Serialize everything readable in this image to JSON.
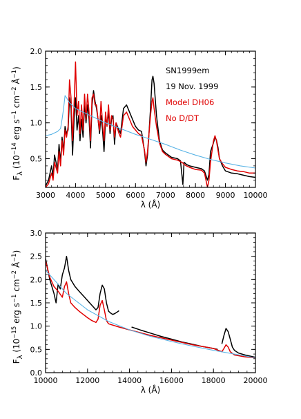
{
  "chart_data": [
    {
      "type": "line",
      "panel": "top",
      "xlim": [
        3000,
        10000
      ],
      "ylim": [
        0.1,
        2.0
      ],
      "xticks": [
        3000,
        4000,
        5000,
        6000,
        7000,
        8000,
        9000,
        10000
      ],
      "xtick_labels": [
        "3000",
        "4000",
        "5000",
        "6000",
        "7000",
        "8000",
        "9000",
        "10000"
      ],
      "yticks": [
        0.5,
        1.0,
        1.5,
        2.0
      ],
      "ytick_labels": [
        "0.5",
        "1.0",
        "1.5",
        "2.0"
      ],
      "xlabel": "λ (Å)",
      "ylabel": "F_λ (10^-14 erg s^-1 cm^-2 Å^-1)",
      "ylabel_parts": {
        "f": "F",
        "lambda_sub": "λ",
        "open": "(10",
        "exp_scale": "−14",
        "erg": "erg s",
        "exp_s": "−1",
        "cm": "cm",
        "exp_cm": "−2",
        "ang": "Å",
        "exp_ang": "−1",
        "close": ")"
      },
      "legend": {
        "placement": "top-right",
        "lines": [
          {
            "text": "SN1999em",
            "color": "#000000"
          },
          {
            "text": "19 Nov. 1999",
            "color": "#000000"
          },
          {
            "text": "Model DH06",
            "color": "#e00000"
          },
          {
            "text": "No D/DT",
            "color": "#e00000"
          }
        ]
      },
      "series": [
        {
          "color": "#000000",
          "x": [
            3000,
            3100,
            3200,
            3250,
            3300,
            3400,
            3450,
            3500,
            3550,
            3600,
            3650,
            3700,
            3750,
            3800,
            3850,
            3900,
            3950,
            4000,
            4050,
            4100,
            4150,
            4200,
            4250,
            4300,
            4350,
            4400,
            4450,
            4500,
            4550,
            4600,
            4650,
            4700,
            4750,
            4800,
            4850,
            4900,
            4950,
            5000,
            5050,
            5100,
            5150,
            5200,
            5250,
            5300,
            5350,
            5400,
            5450,
            5500,
            5600,
            5700,
            5800,
            5900,
            6000,
            6100,
            6200,
            6250,
            6300,
            6350,
            6400,
            6450,
            6500,
            6550,
            6580,
            6620,
            6700,
            6800,
            6900,
            7000,
            7200,
            7400,
            7500,
            7580,
            7620,
            7700,
            7800,
            8000,
            8200,
            8300,
            8400,
            8450,
            8500,
            8600,
            8650,
            8700,
            8750,
            8800,
            8900,
            9000,
            9200,
            9400,
            9600,
            9800,
            10000
          ],
          "y": [
            0.12,
            0.2,
            0.4,
            0.25,
            0.55,
            0.35,
            0.7,
            0.45,
            0.8,
            0.6,
            0.95,
            0.85,
            0.9,
            1.35,
            1.2,
            0.55,
            1.05,
            1.35,
            0.9,
            1.1,
            0.75,
            1.05,
            0.8,
            1.25,
            1.0,
            1.25,
            1.05,
            0.65,
            1.25,
            1.45,
            1.3,
            1.2,
            1.05,
            0.85,
            1.1,
            0.9,
            0.6,
            1.05,
            1.0,
            1.15,
            0.85,
            1.05,
            1.1,
            0.7,
            1.0,
            0.95,
            0.9,
            0.85,
            1.2,
            1.25,
            1.15,
            1.05,
            0.95,
            0.9,
            0.88,
            0.75,
            0.6,
            0.4,
            0.55,
            0.85,
            1.2,
            1.6,
            1.65,
            1.55,
            1.1,
            0.75,
            0.62,
            0.58,
            0.52,
            0.5,
            0.47,
            0.14,
            0.45,
            0.42,
            0.4,
            0.38,
            0.36,
            0.33,
            0.2,
            0.28,
            0.6,
            0.72,
            0.8,
            0.76,
            0.66,
            0.5,
            0.4,
            0.33,
            0.3,
            0.29,
            0.27,
            0.25,
            0.24
          ]
        },
        {
          "color": "#e00000",
          "x": [
            3000,
            3100,
            3200,
            3250,
            3300,
            3400,
            3450,
            3500,
            3550,
            3600,
            3650,
            3700,
            3750,
            3800,
            3850,
            3900,
            3950,
            4000,
            4050,
            4100,
            4150,
            4200,
            4250,
            4300,
            4350,
            4400,
            4450,
            4500,
            4550,
            4600,
            4650,
            4700,
            4750,
            4800,
            4850,
            4900,
            4950,
            5000,
            5050,
            5100,
            5150,
            5200,
            5250,
            5300,
            5350,
            5400,
            5450,
            5500,
            5600,
            5700,
            5800,
            5900,
            6000,
            6100,
            6200,
            6250,
            6300,
            6350,
            6400,
            6450,
            6500,
            6550,
            6580,
            6620,
            6700,
            6800,
            6900,
            7000,
            7200,
            7400,
            7500,
            7580,
            7620,
            7700,
            7800,
            8000,
            8200,
            8300,
            8400,
            8450,
            8500,
            8600,
            8650,
            8700,
            8750,
            8800,
            8900,
            9000,
            9200,
            9400,
            9600,
            9800,
            10000
          ],
          "y": [
            0.1,
            0.15,
            0.3,
            0.2,
            0.45,
            0.3,
            0.6,
            0.4,
            0.75,
            0.55,
            0.9,
            0.8,
            0.95,
            1.6,
            1.35,
            0.75,
            1.25,
            1.85,
            1.1,
            1.3,
            0.85,
            1.25,
            0.9,
            1.4,
            1.05,
            1.4,
            1.15,
            0.75,
            1.35,
            1.4,
            1.25,
            1.25,
            1.05,
            0.9,
            1.3,
            1.0,
            0.75,
            1.15,
            0.95,
            1.25,
            0.9,
            1.1,
            1.05,
            0.8,
            1.0,
            0.92,
            0.85,
            0.8,
            1.1,
            1.15,
            1.05,
            0.95,
            0.9,
            0.85,
            0.82,
            0.72,
            0.62,
            0.45,
            0.6,
            0.85,
            1.1,
            1.3,
            1.35,
            1.2,
            0.95,
            0.72,
            0.6,
            0.56,
            0.5,
            0.48,
            0.46,
            0.44,
            0.42,
            0.4,
            0.38,
            0.35,
            0.34,
            0.3,
            0.1,
            0.2,
            0.45,
            0.75,
            0.82,
            0.75,
            0.62,
            0.5,
            0.43,
            0.38,
            0.35,
            0.33,
            0.32,
            0.3,
            0.3
          ]
        },
        {
          "color": "#5ab4e6",
          "x": [
            3000,
            3200,
            3400,
            3500,
            3550,
            3600,
            3650,
            3700,
            3800,
            4000,
            4500,
            5000,
            5500,
            6000,
            6500,
            7000,
            7500,
            8000,
            8500,
            9000,
            9500,
            10000
          ],
          "y": [
            0.82,
            0.84,
            0.88,
            0.92,
            1.05,
            1.2,
            1.38,
            1.35,
            1.28,
            1.2,
            1.1,
            1.0,
            0.92,
            0.84,
            0.77,
            0.7,
            0.62,
            0.55,
            0.49,
            0.44,
            0.4,
            0.37
          ]
        }
      ]
    },
    {
      "type": "line",
      "panel": "bottom",
      "xlim": [
        10000,
        20000
      ],
      "ylim": [
        0.0,
        3.0
      ],
      "xticks": [
        10000,
        12000,
        14000,
        16000,
        18000,
        20000
      ],
      "xtick_labels": [
        "10000",
        "12000",
        "14000",
        "16000",
        "18000",
        "20000"
      ],
      "yticks": [
        0.0,
        0.5,
        1.0,
        1.5,
        2.0,
        2.5,
        3.0
      ],
      "ytick_labels": [
        "0.0",
        "0.5",
        "1.0",
        "1.5",
        "2.0",
        "2.5",
        "3.0"
      ],
      "xlabel": "λ (Å)",
      "ylabel": "F_λ (10^-15 erg s^-1 cm^-2 Å^-1)",
      "ylabel_parts": {
        "f": "F",
        "lambda_sub": "λ",
        "open": "(10",
        "exp_scale": "−15",
        "erg": "erg s",
        "exp_s": "−1",
        "cm": "cm",
        "exp_cm": "−2",
        "ang": "Å",
        "exp_ang": "−1",
        "close": ")"
      },
      "series": [
        {
          "color": "#000000",
          "segments": [
            {
              "x": [
                10000,
                10200,
                10400,
                10500,
                10600,
                10700,
                10800,
                10900,
                11000,
                11100,
                11200,
                11400,
                11600,
                11800,
                12000,
                12200,
                12400,
                12500,
                12600,
                12700,
                12800,
                12900,
                13000,
                13100,
                13200,
                13300,
                13400,
                13500
              ],
              "y": [
                2.45,
                2.0,
                1.7,
                1.5,
                1.9,
                1.8,
                2.1,
                2.25,
                2.5,
                2.2,
                2.0,
                1.85,
                1.75,
                1.65,
                1.55,
                1.45,
                1.35,
                1.4,
                1.7,
                1.88,
                1.8,
                1.5,
                1.32,
                1.28,
                1.25,
                1.27,
                1.3,
                1.33
              ]
            },
            {
              "x": [
                14100,
                14500,
                15000,
                15500,
                16000,
                16500,
                17000,
                17500,
                18000,
                18200
              ],
              "y": [
                0.98,
                0.92,
                0.85,
                0.78,
                0.72,
                0.66,
                0.61,
                0.56,
                0.52,
                0.5
              ]
            },
            {
              "x": [
                18400,
                18500,
                18600,
                18700,
                18800,
                18900,
                19000,
                19200,
                19500,
                20000
              ],
              "y": [
                0.62,
                0.8,
                0.95,
                0.88,
                0.72,
                0.55,
                0.48,
                0.42,
                0.38,
                0.33
              ]
            }
          ]
        },
        {
          "color": "#e00000",
          "x": [
            10000,
            10200,
            10400,
            10600,
            10800,
            10900,
            11000,
            11100,
            11200,
            11400,
            11600,
            11800,
            12000,
            12200,
            12400,
            12500,
            12600,
            12700,
            12800,
            12900,
            13000,
            13500,
            14000,
            15000,
            16000,
            17000,
            18000,
            18400,
            18500,
            18600,
            18700,
            18800,
            19000,
            19500,
            20000
          ],
          "y": [
            2.4,
            2.05,
            1.85,
            1.75,
            1.62,
            1.85,
            1.95,
            1.7,
            1.5,
            1.4,
            1.32,
            1.25,
            1.18,
            1.12,
            1.08,
            1.15,
            1.45,
            1.55,
            1.35,
            1.12,
            1.05,
            0.98,
            0.92,
            0.8,
            0.7,
            0.6,
            0.52,
            0.45,
            0.52,
            0.6,
            0.55,
            0.45,
            0.38,
            0.34,
            0.32
          ]
        },
        {
          "color": "#5ab4e6",
          "x": [
            10000,
            11000,
            12000,
            13000,
            14000,
            15000,
            16000,
            17000,
            18000,
            19000,
            20000
          ],
          "y": [
            2.2,
            1.7,
            1.35,
            1.1,
            0.92,
            0.78,
            0.67,
            0.57,
            0.48,
            0.4,
            0.32
          ]
        }
      ]
    }
  ]
}
